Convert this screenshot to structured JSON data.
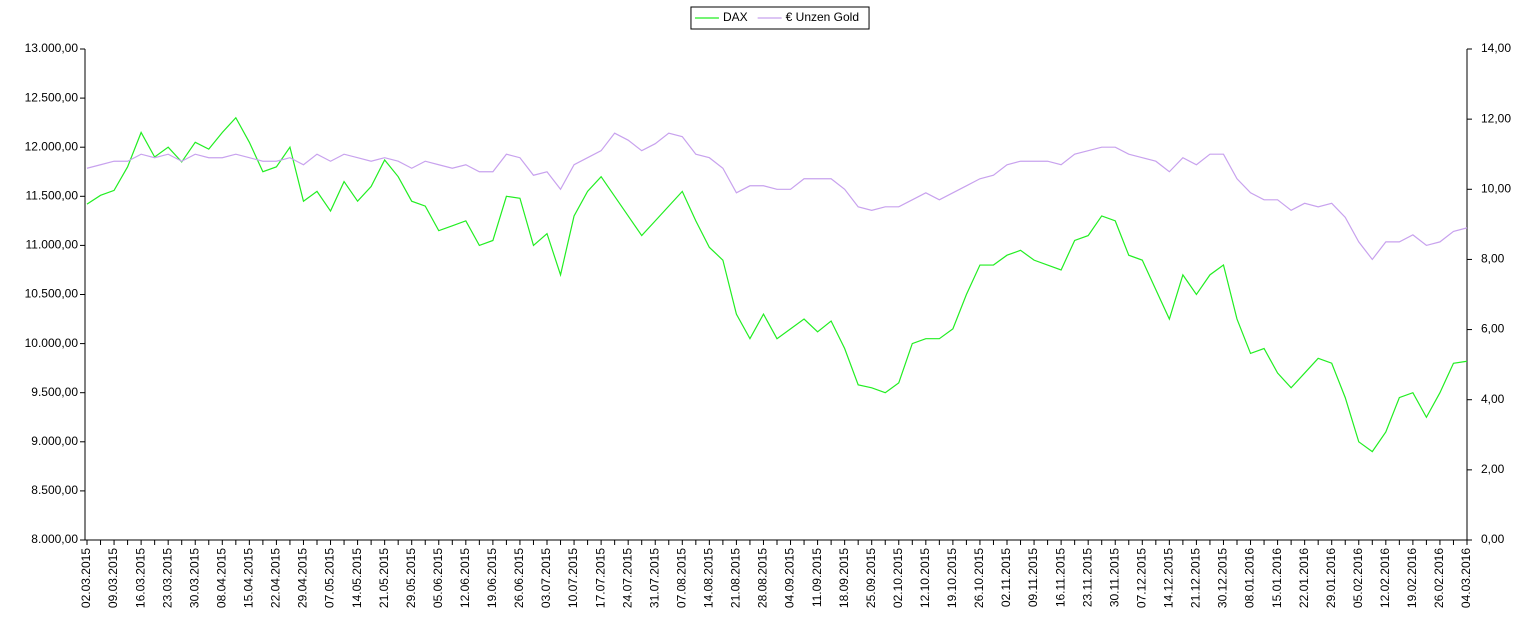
{
  "chart_data": {
    "type": "line",
    "categories": [
      "02.03.2015",
      null,
      "09.03.2015",
      null,
      "16.03.2015",
      null,
      "23.03.2015",
      null,
      "30.03.2015",
      null,
      "08.04.2015",
      null,
      "15.04.2015",
      null,
      "22.04.2015",
      null,
      "29.04.2015",
      null,
      "07.05.2015",
      null,
      "14.05.2015",
      null,
      "21.05.2015",
      null,
      "29.05.2015",
      null,
      "05.06.2015",
      null,
      "12.06.2015",
      null,
      "19.06.2015",
      null,
      "26.06.2015",
      null,
      "03.07.2015",
      null,
      "10.07.2015",
      null,
      "17.07.2015",
      null,
      "24.07.2015",
      null,
      "31.07.2015",
      null,
      "07.08.2015",
      null,
      "14.08.2015",
      null,
      "21.08.2015",
      null,
      "28.08.2015",
      null,
      "04.09.2015",
      null,
      "11.09.2015",
      null,
      "18.09.2015",
      null,
      "25.09.2015",
      null,
      "02.10.2015",
      null,
      "12.10.2015",
      null,
      "19.10.2015",
      null,
      "26.10.2015",
      null,
      "02.11.2015",
      null,
      "09.11.2015",
      null,
      "16.11.2015",
      null,
      "23.11.2015",
      null,
      "30.11.2015",
      null,
      "07.12.2015",
      null,
      "14.12.2015",
      null,
      "21.12.2015",
      null,
      "30.12.2015",
      null,
      "08.01.2016",
      null,
      "15.01.2016",
      null,
      "22.01.2016",
      null,
      "29.01.2016",
      null,
      "05.02.2016",
      null,
      "12.02.2016",
      null,
      "19.02.2016",
      null,
      "26.02.2016",
      null,
      "04.03.2016"
    ],
    "series": [
      {
        "name": "DAX",
        "color": "#22ee22",
        "values": [
          11420,
          11510,
          11560,
          11800,
          12150,
          11900,
          12000,
          11850,
          12050,
          11980,
          12150,
          12300,
          12050,
          11750,
          11800,
          12000,
          11450,
          11550,
          11350,
          11650,
          11450,
          11600,
          11870,
          11700,
          11450,
          11400,
          11150,
          11200,
          11250,
          11000,
          11050,
          11500,
          11480,
          11000,
          11120,
          10700,
          11300,
          11550,
          11700,
          11500,
          11300,
          11100,
          11250,
          11400,
          11550,
          11250,
          10980,
          10850,
          10300,
          10050,
          10300,
          10050,
          10150,
          10250,
          10120,
          10230,
          9950,
          9580,
          9550,
          9500,
          9600,
          10000,
          10050,
          10050,
          10150,
          10500,
          10800,
          10800,
          10900,
          10950,
          10850,
          10800,
          10750,
          11050,
          11100,
          11300,
          11250,
          10900,
          10850,
          10550,
          10250,
          10700,
          10500,
          10700,
          10800,
          10250,
          9900,
          9950,
          9700,
          9550,
          9700,
          9850,
          9800,
          9450,
          9000,
          8900,
          9100,
          9450,
          9500,
          9250,
          9500,
          9800,
          9820
        ]
      },
      {
        "name": "€ Unzen Gold",
        "color": "#c8a2ee",
        "axis": "y2",
        "values": [
          10.6,
          10.7,
          10.8,
          10.8,
          11.0,
          10.9,
          11.0,
          10.8,
          11.0,
          10.9,
          10.9,
          11.0,
          10.9,
          10.8,
          10.8,
          10.9,
          10.7,
          11.0,
          10.8,
          11.0,
          10.9,
          10.8,
          10.9,
          10.8,
          10.6,
          10.8,
          10.7,
          10.6,
          10.7,
          10.5,
          10.5,
          11.0,
          10.9,
          10.4,
          10.5,
          10.0,
          10.7,
          10.9,
          11.1,
          11.6,
          11.4,
          11.1,
          11.3,
          11.6,
          11.5,
          11.0,
          10.9,
          10.6,
          9.9,
          10.1,
          10.1,
          10.0,
          10.0,
          10.3,
          10.3,
          10.3,
          10.0,
          9.5,
          9.4,
          9.5,
          9.5,
          9.7,
          9.9,
          9.7,
          9.9,
          10.1,
          10.3,
          10.4,
          10.7,
          10.8,
          10.8,
          10.8,
          10.7,
          11.0,
          11.1,
          11.2,
          11.2,
          11.0,
          10.9,
          10.8,
          10.5,
          10.9,
          10.7,
          11.0,
          11.0,
          10.3,
          9.9,
          9.7,
          9.7,
          9.4,
          9.6,
          9.5,
          9.6,
          9.2,
          8.5,
          8.0,
          8.5,
          8.5,
          8.7,
          8.4,
          8.5,
          8.8,
          8.9
        ]
      }
    ],
    "ylim": [
      8000,
      13000
    ],
    "yticks": [
      {
        "value": 8000,
        "label": "8.000,00"
      },
      {
        "value": 8500,
        "label": "8.500,00"
      },
      {
        "value": 9000,
        "label": "9.000,00"
      },
      {
        "value": 9500,
        "label": "9.500,00"
      },
      {
        "value": 10000,
        "label": "10.000,00"
      },
      {
        "value": 10500,
        "label": "10.500,00"
      },
      {
        "value": 11000,
        "label": "11.000,00"
      },
      {
        "value": 11500,
        "label": "11.500,00"
      },
      {
        "value": 12000,
        "label": "12.000,00"
      },
      {
        "value": 12500,
        "label": "12.500,00"
      },
      {
        "value": 13000,
        "label": "13.000,00"
      }
    ],
    "y2lim": [
      0,
      14
    ],
    "y2ticks": [
      {
        "value": 0,
        "label": "0,00"
      },
      {
        "value": 2,
        "label": "2,00"
      },
      {
        "value": 4,
        "label": "4,00"
      },
      {
        "value": 6,
        "label": "6,00"
      },
      {
        "value": 8,
        "label": "8,00"
      },
      {
        "value": 10,
        "label": "10,00"
      },
      {
        "value": 12,
        "label": "12,00"
      },
      {
        "value": 14,
        "label": "14,00"
      }
    ],
    "grid": false,
    "legend": "top"
  }
}
